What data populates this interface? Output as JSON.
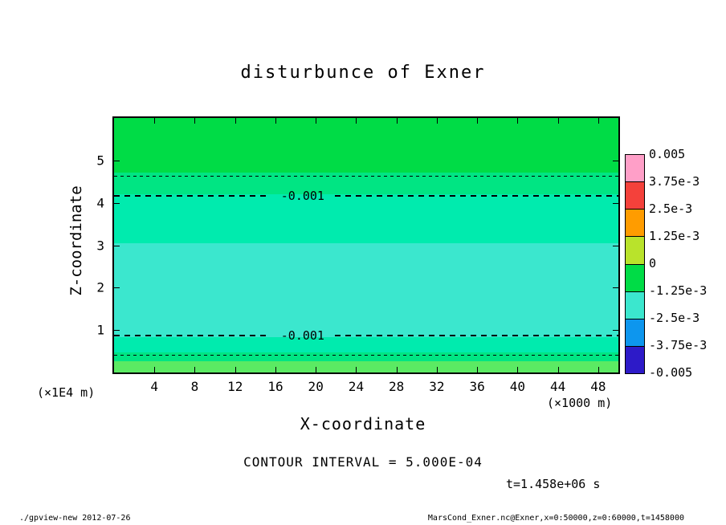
{
  "chart_data": {
    "type": "heatmap",
    "title": "disturbunce of Exner",
    "xlabel": "X-coordinate",
    "ylabel": "Z-coordinate",
    "x_unit_label": "(×1000 m)",
    "y_unit_label": "(×1E4 m)",
    "x_range": [
      0,
      50
    ],
    "y_range": [
      0,
      6
    ],
    "x_ticks": [
      4,
      8,
      12,
      16,
      20,
      24,
      28,
      32,
      36,
      40,
      44,
      48
    ],
    "y_ticks": [
      1,
      2,
      3,
      4,
      5
    ],
    "contour_interval": 0.0005,
    "contour_interval_label": "CONTOUR INTERVAL = 5.000E-04",
    "time_label": "t=1.458e+06 s",
    "bands": [
      {
        "range": [
          -0.0005,
          0
        ],
        "top": 0.0,
        "bottom": 0.2145,
        "color": "#00DC46"
      },
      {
        "range": [
          -0.001,
          -0.0005
        ],
        "top": 0.2145,
        "bottom": 0.2997,
        "color": "#00E583"
      },
      {
        "range": [
          -0.0015,
          -0.001
        ],
        "top": 0.2997,
        "bottom": 0.4921,
        "color": "#00EBAE"
      },
      {
        "range": [
          -0.002,
          -0.0015
        ],
        "top": 0.4921,
        "bottom": 0.8612,
        "color": "#3BE7CE"
      },
      {
        "range": [
          -0.0015,
          -0.001
        ],
        "top": 0.8612,
        "bottom": 0.9211,
        "color": "#00EBAE"
      },
      {
        "range": [
          -0.001,
          -0.0005
        ],
        "top": 0.9211,
        "bottom": 0.9558,
        "color": "#00E583"
      },
      {
        "range": [
          -0.0005,
          0
        ],
        "top": 0.9558,
        "bottom": 1.0,
        "color": "#5BEA63"
      }
    ],
    "contours": [
      {
        "value": -0.0005,
        "y": 0.2271,
        "label": null,
        "label_x": null
      },
      {
        "value": -0.001,
        "y": 0.3028,
        "label": "-0.001",
        "label_x": 0.374
      },
      {
        "value": -0.001,
        "y": 0.8517,
        "label": "-0.001",
        "label_x": 0.374
      },
      {
        "value": -0.0005,
        "y": 0.9306,
        "label": null,
        "label_x": null
      }
    ],
    "colorbar": {
      "labels": [
        "0.005",
        "3.75e-3",
        "2.5e-3",
        "1.25e-3",
        "0",
        "-1.25e-3",
        "-2.5e-3",
        "-3.75e-3",
        "-0.005"
      ],
      "colors": [
        "#FF9FC8",
        "#F4413B",
        "#FF9C00",
        "#B9E32B",
        "#00DC46",
        "#3BE7CE",
        "#0D96EE",
        "#2D1AC8"
      ]
    }
  },
  "footer": {
    "left": "./gpview-new  2012-07-26",
    "right": "MarsCond_Exner.nc@Exner,x=0:50000,z=0:60000,t=1458000"
  }
}
